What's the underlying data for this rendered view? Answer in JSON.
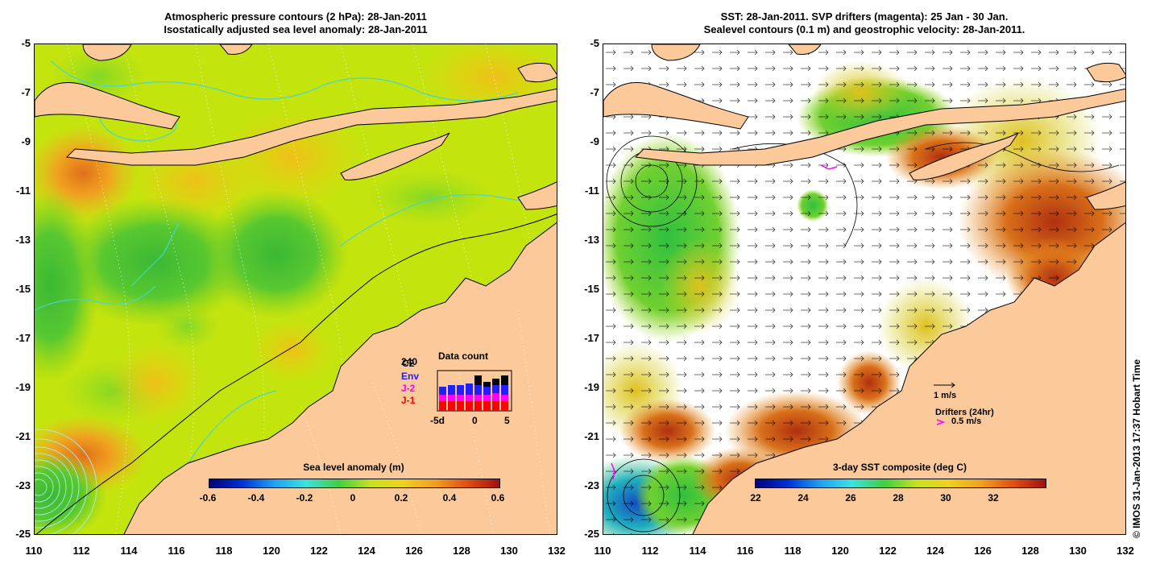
{
  "left_map": {
    "title_line1": "Atmospheric pressure contours (2 hPa): 28-Jan-2011",
    "title_line2": "Isostatically adjusted sea level anomaly: 28-Jan-2011",
    "y_ticks": [
      "-5",
      "-7",
      "-9",
      "-11",
      "-13",
      "-15",
      "-17",
      "-19",
      "-21",
      "-23",
      "-25"
    ],
    "x_ticks": [
      "110",
      "112",
      "114",
      "116",
      "118",
      "120",
      "122",
      "124",
      "126",
      "128",
      "130",
      "132"
    ],
    "colorbar_title": "Sea level anomaly (m)",
    "colorbar_ticks": [
      "-0.6",
      "-0.4",
      "-0.2",
      "0",
      "0.2",
      "0.4",
      "0.6"
    ],
    "inset": {
      "title": "Data count",
      "legend": [
        "C2",
        "Env",
        "J-2",
        "J-1"
      ],
      "legend_overlap": "240",
      "x_ticks": [
        "-5d",
        "0",
        "5"
      ],
      "colors": {
        "C2": "#000000",
        "Env": "#2020ff",
        "J-2": "#ff00ff",
        "J-1": "#ff0000"
      }
    },
    "colors": {
      "land": "#fbc99a",
      "ocean_base": "#c8e60a",
      "contour": "#40e0d0",
      "coast": "#000000"
    }
  },
  "right_map": {
    "title_line1": "SST: 28-Jan-2011. SVP drifters (magenta): 25 Jan - 30 Jan.",
    "title_line2": "Sealevel contours (0.1 m) and geostrophic velocity: 28-Jan-2011.",
    "y_ticks": [
      "-5",
      "-7",
      "-9",
      "-11",
      "-13",
      "-15",
      "-17",
      "-19",
      "-21",
      "-23",
      "-25"
    ],
    "x_ticks": [
      "110",
      "112",
      "114",
      "116",
      "118",
      "120",
      "122",
      "124",
      "126",
      "128",
      "130",
      "132"
    ],
    "colorbar_title": "3-day SST composite (deg C)",
    "colorbar_ticks": [
      "22",
      "24",
      "26",
      "28",
      "30",
      "32"
    ],
    "velocity_legend": "1 m/s",
    "drifter_legend_title": "Drifters (24hr)",
    "drifter_legend_value": "0.5 m/s",
    "colors": {
      "land": "#fbc99a",
      "cloud": "#ffffff",
      "drifter": "#ff00ff"
    }
  },
  "credit": "© IMOS 31-Jan-2013 17:37 Hobart Time"
}
